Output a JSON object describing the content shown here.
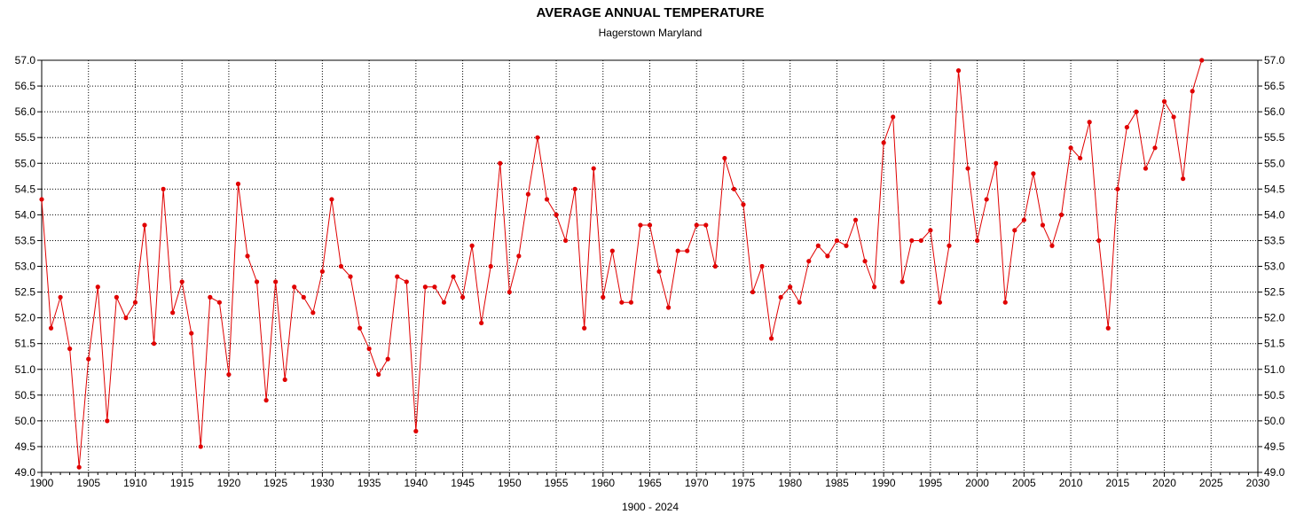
{
  "chart_data": {
    "type": "line",
    "title": "AVERAGE ANNUAL TEMPERATURE",
    "subtitle": "Hagerstown Maryland",
    "xlabel": "1900 - 2024",
    "ylabel": "",
    "xlim": [
      1900,
      2030
    ],
    "ylim": [
      49.0,
      57.0
    ],
    "x_ticks": [
      "1900",
      "1905",
      "1910",
      "1915",
      "1920",
      "1925",
      "1930",
      "1935",
      "1940",
      "1945",
      "1950",
      "1955",
      "1960",
      "1965",
      "1970",
      "1975",
      "1980",
      "1985",
      "1990",
      "1995",
      "2000",
      "2005",
      "2010",
      "2015",
      "2020",
      "2025",
      "2030"
    ],
    "y_ticks": [
      "49.0",
      "49.5",
      "50.0",
      "50.5",
      "51.0",
      "51.5",
      "52.0",
      "52.5",
      "53.0",
      "53.5",
      "54.0",
      "54.5",
      "55.0",
      "55.5",
      "56.0",
      "56.5",
      "57.0"
    ],
    "grid": true,
    "line_color": "#e00000",
    "marker_color": "#e00000",
    "series": [
      {
        "x": [
          1900,
          1901,
          1902,
          1903,
          1904,
          1905,
          1906,
          1907,
          1908,
          1909,
          1910,
          1911,
          1912,
          1913,
          1914,
          1915,
          1916,
          1917,
          1918,
          1919,
          1920,
          1921,
          1922,
          1923,
          1924,
          1925,
          1926,
          1927,
          1928,
          1929,
          1930,
          1931,
          1932,
          1933,
          1934,
          1935,
          1936,
          1937,
          1938,
          1939,
          1940,
          1941,
          1942,
          1943,
          1944,
          1945,
          1946,
          1947,
          1948,
          1949,
          1950,
          1951,
          1952,
          1953,
          1954,
          1955,
          1956,
          1957,
          1958,
          1959,
          1960,
          1961,
          1962,
          1963,
          1964,
          1965,
          1966,
          1967,
          1968,
          1969,
          1970,
          1971,
          1972,
          1973,
          1974,
          1975,
          1976,
          1977,
          1978,
          1979,
          1980,
          1981,
          1982,
          1983,
          1984,
          1985,
          1986,
          1987,
          1988,
          1989,
          1990,
          1991,
          1992,
          1993,
          1994,
          1995,
          1996,
          1997,
          1998,
          1999,
          2000,
          2001,
          2002,
          2003,
          2004,
          2005,
          2006,
          2007,
          2008,
          2009,
          2010,
          2011,
          2012,
          2013,
          2014,
          2015,
          2016,
          2017,
          2018,
          2019,
          2020,
          2021,
          2022,
          2023,
          2024
        ],
        "values": [
          54.3,
          51.8,
          52.4,
          51.4,
          49.1,
          51.2,
          52.6,
          50.0,
          52.4,
          52.0,
          52.3,
          53.8,
          51.5,
          54.5,
          52.1,
          52.7,
          51.7,
          49.5,
          52.4,
          52.3,
          50.9,
          54.6,
          53.2,
          52.7,
          50.4,
          52.7,
          50.8,
          52.6,
          52.4,
          52.1,
          52.9,
          54.3,
          53.0,
          52.8,
          51.8,
          51.4,
          50.9,
          51.2,
          52.8,
          52.7,
          49.8,
          52.6,
          52.6,
          52.3,
          52.8,
          52.4,
          53.4,
          51.9,
          53.0,
          55.0,
          52.5,
          53.2,
          54.4,
          55.5,
          54.3,
          54.0,
          53.5,
          54.5,
          51.8,
          54.9,
          52.4,
          53.3,
          52.3,
          52.3,
          53.8,
          53.8,
          52.9,
          52.2,
          53.3,
          53.3,
          53.8,
          53.8,
          53.0,
          55.1,
          54.5,
          54.2,
          52.5,
          53.0,
          51.6,
          52.4,
          52.6,
          52.3,
          53.1,
          53.4,
          53.2,
          53.5,
          53.4,
          53.9,
          53.1,
          52.6,
          55.4,
          55.9,
          52.7,
          53.5,
          53.5,
          53.7,
          52.3,
          53.4,
          56.8,
          54.9,
          53.5,
          54.3,
          55.0,
          52.3,
          53.7,
          53.9,
          54.8,
          53.8,
          53.4,
          54.0,
          55.3,
          55.1,
          55.8,
          53.5,
          51.8,
          54.5,
          55.7,
          56.0,
          54.9,
          55.3,
          56.2,
          55.9,
          54.7,
          56.4,
          57.0
        ]
      }
    ]
  }
}
